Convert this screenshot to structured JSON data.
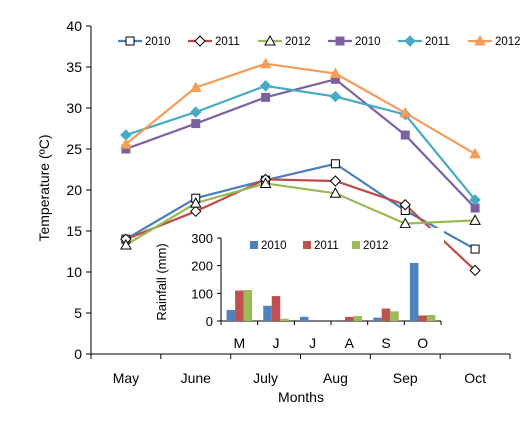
{
  "chart_data": [
    {
      "type": "line",
      "xlabel": "Months",
      "ylabel": "Temperature (ºC)",
      "categories": [
        "May",
        "June",
        "July",
        "Aug",
        "Sep",
        "Oct"
      ],
      "ylim": [
        0,
        40
      ],
      "yticks": [
        0,
        5,
        10,
        15,
        20,
        25,
        30,
        35,
        40
      ],
      "grid": false,
      "legend_position": "top",
      "series": [
        {
          "name": "2010",
          "color": "#4a7ebb",
          "marker": "square-open",
          "values": [
            14,
            19,
            21.2,
            23.2,
            17.5,
            12.8
          ]
        },
        {
          "name": "2011",
          "color": "#be4b48",
          "marker": "diamond-open",
          "values": [
            14,
            17.4,
            21.3,
            21.1,
            18.2,
            10.2
          ]
        },
        {
          "name": "2012",
          "color": "#98b954",
          "marker": "triangle-open",
          "values": [
            13.3,
            18.4,
            20.8,
            19.6,
            15.9,
            16.3
          ]
        },
        {
          "name": "2010",
          "color": "#7d60a0",
          "marker": "square",
          "values": [
            25,
            28.1,
            31.3,
            33.5,
            26.7,
            17.8
          ]
        },
        {
          "name": "2011",
          "color": "#46aac5",
          "marker": "diamond",
          "values": [
            26.7,
            29.5,
            32.7,
            31.4,
            29.2,
            18.8
          ]
        },
        {
          "name": "2012",
          "color": "#f59d56",
          "marker": "triangle",
          "values": [
            25.6,
            32.5,
            35.4,
            34.2,
            29.4,
            24.4
          ]
        }
      ]
    },
    {
      "type": "bar",
      "ylabel": "Rainfall (mm)",
      "categories": [
        "M",
        "J",
        "J",
        "A",
        "S",
        "O"
      ],
      "ylim": [
        0,
        300
      ],
      "yticks": [
        0,
        100,
        200,
        300
      ],
      "legend_position": "top",
      "series": [
        {
          "name": "2010",
          "color": "#4f81bd",
          "values": [
            40,
            55,
            15,
            0,
            12,
            210
          ]
        },
        {
          "name": "2011",
          "color": "#c0504d",
          "values": [
            110,
            90,
            0,
            15,
            45,
            20
          ]
        },
        {
          "name": "2012",
          "color": "#9bbb59",
          "values": [
            112,
            8,
            0,
            18,
            35,
            22
          ]
        }
      ]
    }
  ]
}
